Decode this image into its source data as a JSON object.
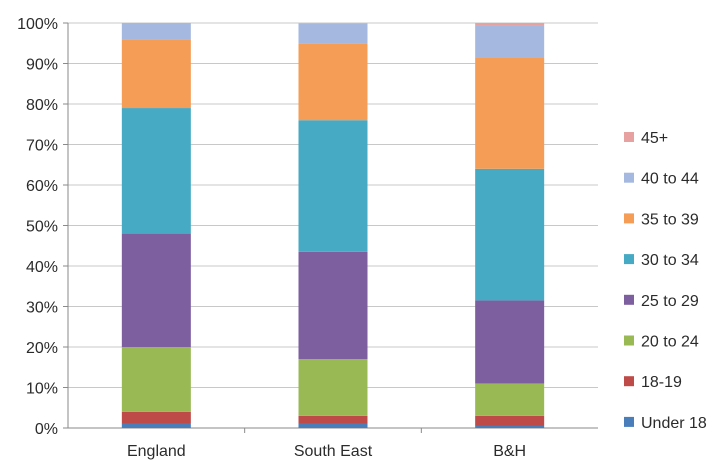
{
  "chart_data": {
    "type": "bar",
    "stacked": true,
    "percent": true,
    "categories": [
      "England",
      "South East",
      "B&H"
    ],
    "series": [
      {
        "name": "Under 18",
        "color": "#4a7ebb",
        "values": [
          1,
          1,
          0.5
        ]
      },
      {
        "name": "18-19",
        "color": "#be4b48",
        "values": [
          3,
          2,
          2.5
        ]
      },
      {
        "name": "20 to 24",
        "color": "#98b954",
        "values": [
          16,
          14,
          8
        ]
      },
      {
        "name": "25 to 29",
        "color": "#7d5fa0",
        "values": [
          28,
          26.5,
          20.5
        ]
      },
      {
        "name": "30 to 34",
        "color": "#46aac5",
        "values": [
          31,
          32.5,
          32.5
        ]
      },
      {
        "name": "35 to 39",
        "color": "#f59d56",
        "values": [
          17,
          19,
          27.5
        ]
      },
      {
        "name": "40 to 44",
        "color": "#a5b9e0",
        "values": [
          4,
          4.8,
          8
        ]
      },
      {
        "name": "45+",
        "color": "#e6a1a0",
        "values": [
          0,
          0.2,
          0.5
        ]
      }
    ],
    "y_ticks": [
      "0%",
      "10%",
      "20%",
      "30%",
      "40%",
      "50%",
      "60%",
      "70%",
      "80%",
      "90%",
      "100%"
    ],
    "ylim": [
      0,
      100
    ],
    "grid": true,
    "legend": "right"
  }
}
